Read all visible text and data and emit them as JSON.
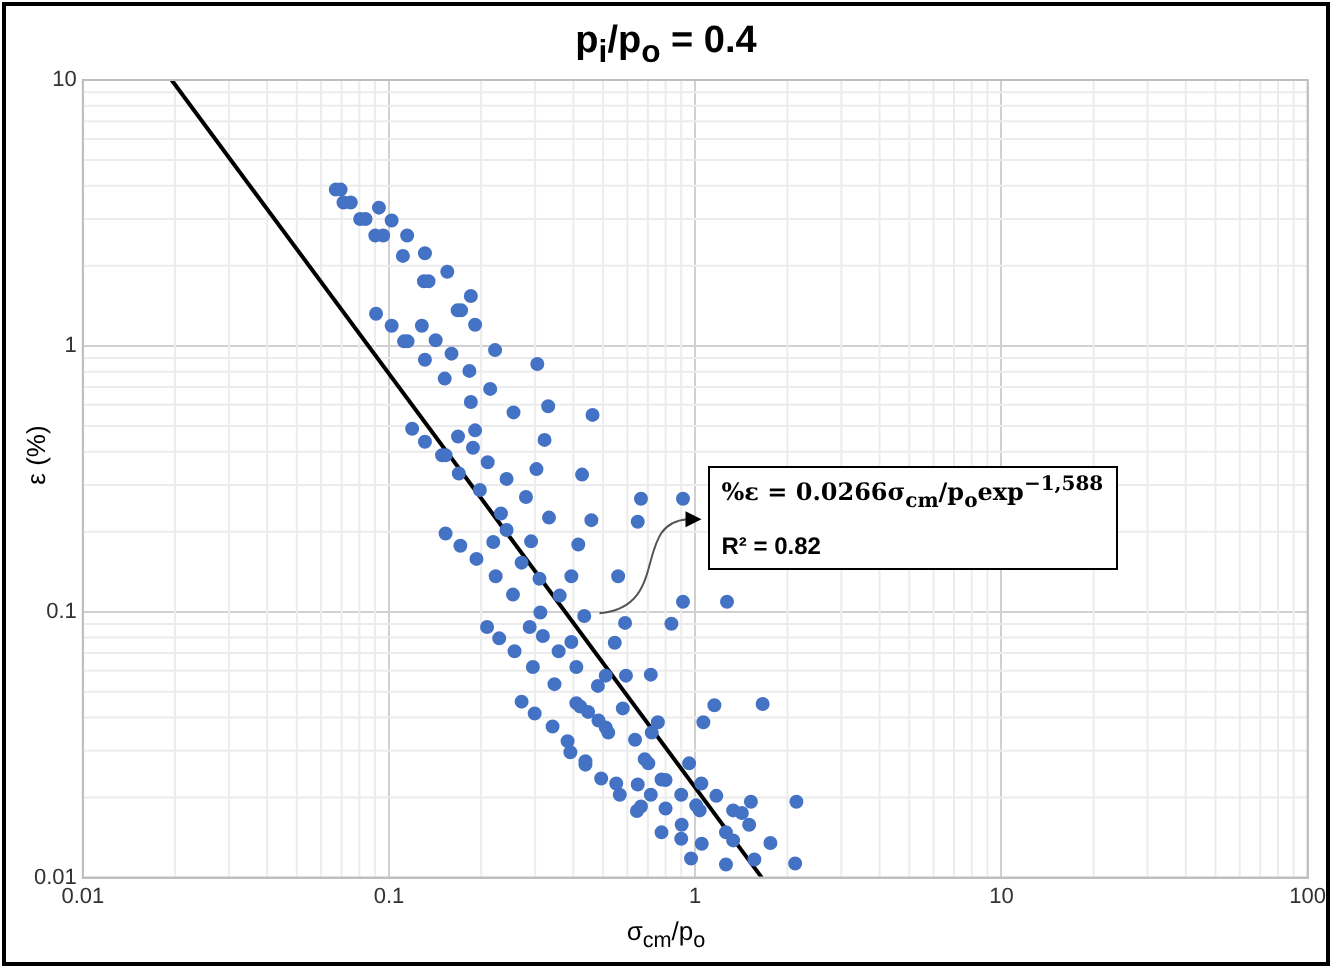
{
  "chart_data": {
    "type": "scatter",
    "title": "p$_{i}$/p$_{o}$ = 0.4",
    "xlabel": "σ$_{cm}$/p$_{o}$",
    "ylabel": "ε (%)",
    "log": "xy",
    "xlim": [
      0.01,
      100
    ],
    "ylim": [
      0.01,
      10
    ],
    "xticks": [
      0.01,
      0.1,
      1,
      10,
      100
    ],
    "yticks": [
      0.01,
      0.1,
      1,
      10
    ],
    "grid": true,
    "legend": false,
    "marker": "circle",
    "annotations": [
      "%ε = 0.0266σ$_{cm}$/p$_{o}$exp$^{−1,588}$",
      "R² = 0.82"
    ],
    "series": [
      {
        "color": "#4472c4",
        "x": [
          0.067,
          0.0695,
          0.071,
          0.075,
          0.0805,
          0.0838,
          0.0927,
          0.102,
          0.0902,
          0.0957,
          0.1146,
          0.111,
          0.131,
          0.13,
          0.1346,
          0.155,
          0.1675,
          0.172,
          0.185,
          0.191,
          0.0907,
          0.102,
          0.112,
          0.115,
          0.128,
          0.142,
          0.131,
          0.16,
          0.152,
          0.183,
          0.185,
          0.214,
          0.222,
          0.305,
          0.255,
          0.331,
          0.462,
          0.119,
          0.131,
          0.149,
          0.153,
          0.169,
          0.198,
          0.168,
          0.188,
          0.21,
          0.242,
          0.191,
          0.232,
          0.28,
          0.322,
          0.303,
          0.427,
          0.333,
          0.458,
          0.415,
          0.665,
          0.649,
          0.912,
          0.153,
          0.171,
          0.193,
          0.219,
          0.242,
          0.291,
          0.271,
          0.223,
          0.254,
          0.31,
          0.394,
          0.361,
          0.312,
          0.434,
          0.56,
          0.59,
          0.546,
          0.912,
          1.27,
          0.836,
          0.209,
          0.229,
          0.257,
          0.288,
          0.318,
          0.358,
          0.394,
          0.295,
          0.347,
          0.409,
          0.51,
          0.481,
          0.594,
          0.716,
          0.271,
          0.299,
          0.342,
          0.409,
          0.421,
          0.447,
          0.483,
          0.51,
          0.52,
          0.383,
          0.391,
          0.438,
          0.438,
          0.58,
          0.636,
          0.684,
          0.703,
          0.755,
          0.721,
          0.493,
          0.552,
          0.567,
          0.649,
          0.716,
          0.645,
          0.665,
          0.776,
          0.8,
          0.8,
          0.776,
          0.9,
          0.903,
          0.9,
          0.969,
          0.955,
          1.007,
          1.034,
          1.047,
          1.172,
          1.05,
          1.26,
          1.26,
          1.33,
          1.33,
          1.42,
          1.52,
          1.5,
          1.56,
          1.76,
          2.14,
          2.12,
          1.063,
          1.155,
          1.66
        ],
        "values": [
          3.87,
          3.87,
          3.46,
          3.46,
          3.0,
          3.0,
          3.31,
          2.96,
          2.6,
          2.6,
          2.6,
          2.18,
          2.23,
          1.75,
          1.75,
          1.9,
          1.36,
          1.36,
          1.54,
          1.2,
          1.32,
          1.19,
          1.04,
          1.04,
          1.19,
          1.05,
          0.887,
          0.935,
          0.753,
          0.805,
          0.615,
          0.689,
          0.964,
          0.855,
          0.562,
          0.593,
          0.55,
          0.488,
          0.436,
          0.388,
          0.388,
          0.331,
          0.287,
          0.456,
          0.414,
          0.365,
          0.316,
          0.481,
          0.234,
          0.27,
          0.443,
          0.344,
          0.328,
          0.226,
          0.221,
          0.179,
          0.266,
          0.218,
          0.266,
          0.197,
          0.177,
          0.158,
          0.183,
          0.203,
          0.184,
          0.153,
          0.136,
          0.116,
          0.133,
          0.136,
          0.115,
          0.0993,
          0.0964,
          0.136,
          0.0908,
          0.0764,
          0.109,
          0.109,
          0.0901,
          0.0876,
          0.0794,
          0.071,
          0.0876,
          0.081,
          0.071,
          0.0769,
          0.062,
          0.0534,
          0.062,
          0.0575,
          0.0526,
          0.0575,
          0.058,
          0.0459,
          0.0414,
          0.037,
          0.0453,
          0.044,
          0.042,
          0.039,
          0.0367,
          0.0351,
          0.0326,
          0.0296,
          0.0266,
          0.0274,
          0.0433,
          0.033,
          0.0279,
          0.0269,
          0.0384,
          0.0351,
          0.0236,
          0.0226,
          0.0205,
          0.0224,
          0.0205,
          0.0178,
          0.0185,
          0.0234,
          0.0233,
          0.0182,
          0.0148,
          0.0205,
          0.0158,
          0.014,
          0.0118,
          0.0269,
          0.0187,
          0.0179,
          0.0226,
          0.0203,
          0.0134,
          0.0112,
          0.0148,
          0.0138,
          0.0179,
          0.0175,
          0.0193,
          0.0158,
          0.0117,
          0.0135,
          0.0193,
          0.0113,
          0.0384,
          0.0445,
          0.045
        ]
      },
      {
        "type": "line",
        "color": "#000000",
        "line_style": "solid",
        "marker": "none",
        "x": [
          0.0195,
          1.65
        ],
        "values": [
          10,
          0.01
        ]
      }
    ]
  }
}
